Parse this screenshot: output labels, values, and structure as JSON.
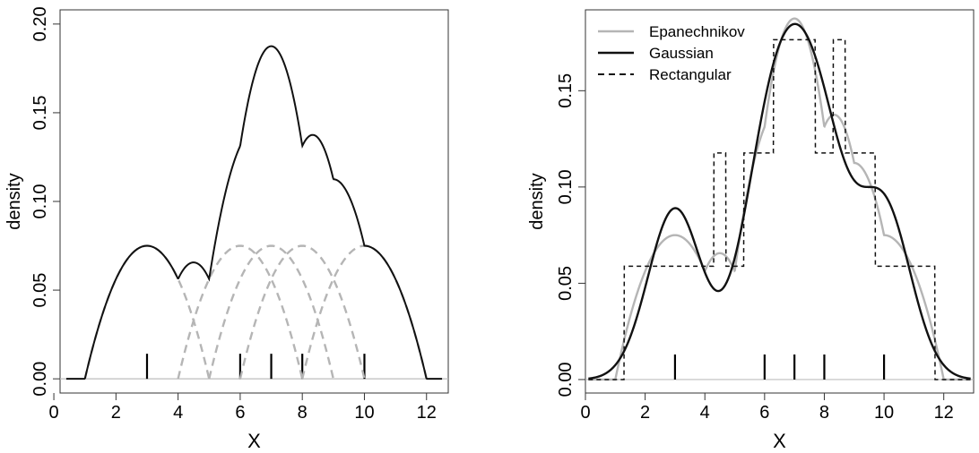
{
  "chart_data": [
    {
      "type": "line",
      "xlabel": "X",
      "ylabel": "density",
      "xlim": [
        0.2,
        12.7
      ],
      "ylim": [
        -0.008,
        0.208
      ],
      "xticks": [
        0,
        2,
        4,
        6,
        8,
        10,
        12
      ],
      "yticks": [
        0.0,
        0.05,
        0.1,
        0.15,
        0.2
      ],
      "ytick_labels": [
        "0.00",
        "0.05",
        "0.10",
        "0.15",
        "0.20"
      ],
      "grid": false,
      "observations": [
        3,
        6,
        7,
        8,
        10
      ],
      "kernel_bandwidth": 2,
      "series": [
        {
          "style": "solid",
          "color": "#111111",
          "kind": "density-estimate",
          "x_range": [
            0.4,
            12.5
          ]
        },
        {
          "style": "dashed",
          "color": "#b5b5b5",
          "kind": "individual-kernels"
        }
      ],
      "baseline": {
        "y": 0,
        "color": "#bdbdbd"
      }
    },
    {
      "type": "line",
      "xlabel": "X",
      "ylabel": "density",
      "xlim": [
        0.0,
        13.0
      ],
      "ylim": [
        -0.007,
        0.192
      ],
      "xticks": [
        0,
        2,
        4,
        6,
        8,
        10,
        12
      ],
      "yticks": [
        0.0,
        0.05,
        0.1,
        0.15
      ],
      "ytick_labels": [
        "0.00",
        "0.05",
        "0.10",
        "0.15"
      ],
      "grid": false,
      "legend_position": "top-left",
      "observations": [
        3,
        6,
        7,
        8,
        10
      ],
      "series": [
        {
          "name": "Epanechnikov",
          "style": "solid",
          "color": "#b5b5b5",
          "kernel": "epanechnikov",
          "bandwidth": 2
        },
        {
          "name": "Gaussian",
          "style": "solid",
          "color": "#111111",
          "kernel": "gaussian",
          "bandwidth": 0.9
        },
        {
          "name": "Rectangular",
          "style": "dashed",
          "color": "#111111",
          "kernel": "rectangular",
          "bandwidth": 1.7
        }
      ],
      "baseline": {
        "y": 0,
        "color": "#bdbdbd"
      }
    }
  ]
}
